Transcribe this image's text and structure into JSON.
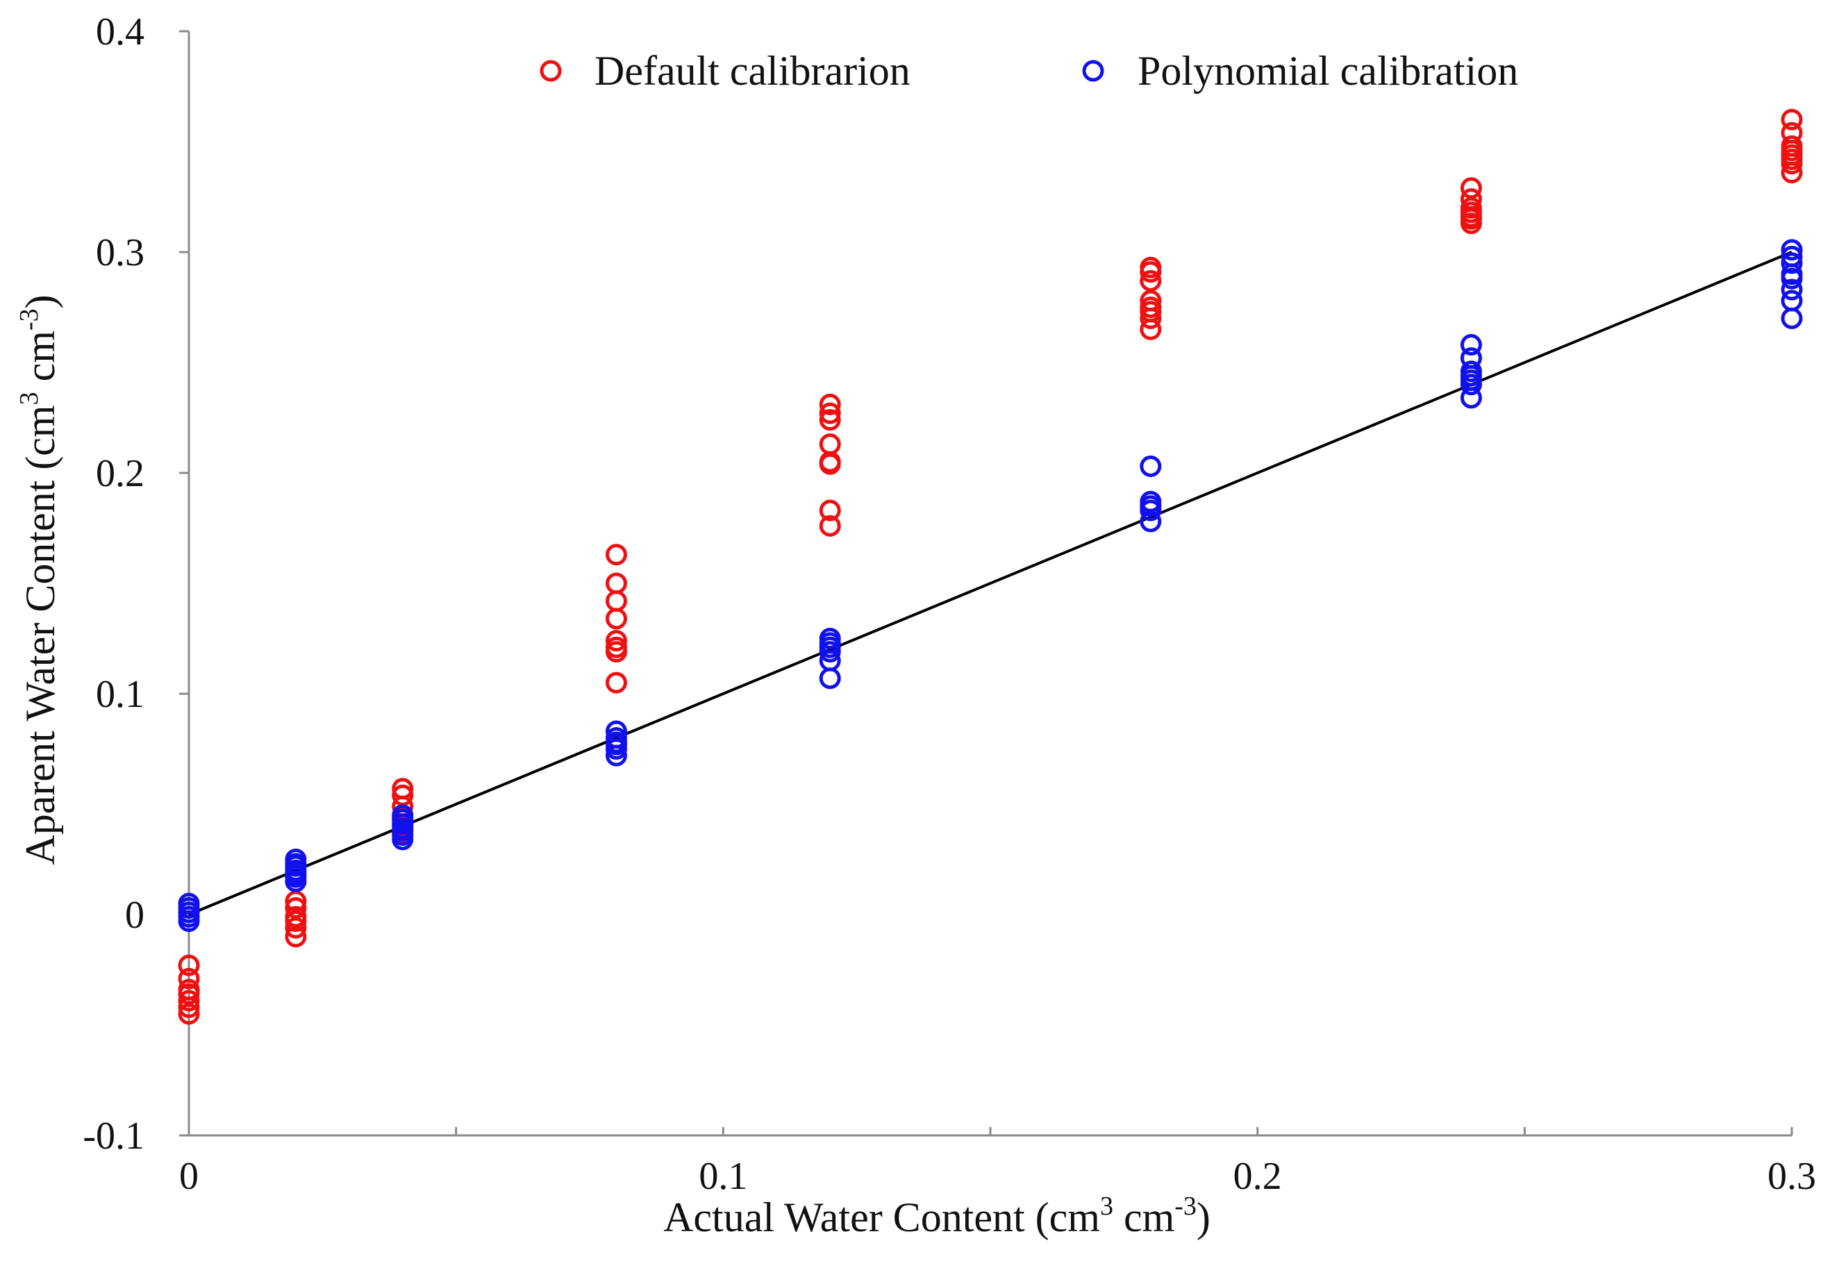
{
  "chart_data": {
    "type": "scatter",
    "title": "",
    "xlabel": "Actual Water Content (cm3 cm-3)",
    "ylabel": "Aparent Water Content (cm3 cm-3)",
    "xlabel_parts": {
      "text": "Actual Water Content (cm",
      "sup1": "3",
      "mid": " cm",
      "sup2": "-3",
      "end": ")"
    },
    "ylabel_parts": {
      "text": "Aparent Water Content (cm",
      "sup1": "3",
      "mid": " cm",
      "sup2": "-3",
      "end": ")"
    },
    "xlim": [
      0,
      0.3
    ],
    "ylim": [
      -0.1,
      0.4
    ],
    "x_ticks": [
      0,
      0.05,
      0.1,
      0.15,
      0.2,
      0.25,
      0.3
    ],
    "x_tick_labels": [
      {
        "value": 0,
        "label": "0"
      },
      {
        "value": 0.1,
        "label": "0.1"
      },
      {
        "value": 0.2,
        "label": "0.2"
      },
      {
        "value": 0.3,
        "label": "0.3"
      }
    ],
    "y_tick_labels": [
      {
        "value": -0.1,
        "label": "-0.1"
      },
      {
        "value": 0,
        "label": "0"
      },
      {
        "value": 0.1,
        "label": "0.1"
      },
      {
        "value": 0.2,
        "label": "0.2"
      },
      {
        "value": 0.3,
        "label": "0.3"
      },
      {
        "value": 0.4,
        "label": "0.4"
      }
    ],
    "grid": false,
    "legend_position": "top",
    "reference_line": {
      "name": "1:1 line",
      "x": [
        0,
        0.3
      ],
      "y": [
        0,
        0.3
      ],
      "color": "#000000"
    },
    "series": [
      {
        "name": "Default calibrarion",
        "color": "#ee1111",
        "marker": "open-circle",
        "x": [
          0,
          0,
          0,
          0,
          0,
          0,
          0,
          0.02,
          0.02,
          0.02,
          0.02,
          0.02,
          0.02,
          0.02,
          0.04,
          0.04,
          0.04,
          0.04,
          0.04,
          0.04,
          0.08,
          0.08,
          0.08,
          0.08,
          0.08,
          0.08,
          0.08,
          0.08,
          0.12,
          0.12,
          0.12,
          0.12,
          0.12,
          0.12,
          0.12,
          0.12,
          0.18,
          0.18,
          0.18,
          0.18,
          0.18,
          0.18,
          0.18,
          0.18,
          0.24,
          0.24,
          0.24,
          0.24,
          0.24,
          0.24,
          0.24,
          0.3,
          0.3,
          0.3,
          0.3,
          0.3,
          0.3,
          0.3,
          0.3
        ],
        "y": [
          -0.023,
          -0.029,
          -0.034,
          -0.036,
          -0.039,
          -0.042,
          -0.045,
          0.015,
          0.006,
          0.003,
          -0.001,
          -0.003,
          -0.006,
          -0.01,
          0.057,
          0.054,
          0.049,
          0.044,
          0.04,
          0.037,
          0.163,
          0.15,
          0.142,
          0.134,
          0.124,
          0.121,
          0.119,
          0.105,
          0.231,
          0.227,
          0.224,
          0.213,
          0.205,
          0.204,
          0.183,
          0.176,
          0.293,
          0.291,
          0.287,
          0.278,
          0.275,
          0.273,
          0.27,
          0.265,
          0.329,
          0.324,
          0.32,
          0.318,
          0.316,
          0.315,
          0.313,
          0.36,
          0.354,
          0.348,
          0.346,
          0.344,
          0.342,
          0.34,
          0.336
        ]
      },
      {
        "name": "Polynomial calibration",
        "color": "#1111ee",
        "marker": "open-circle",
        "x": [
          0,
          0,
          0,
          0,
          0,
          0.02,
          0.02,
          0.02,
          0.02,
          0.02,
          0.02,
          0.02,
          0.02,
          0.04,
          0.04,
          0.04,
          0.04,
          0.04,
          0.04,
          0.04,
          0.08,
          0.08,
          0.08,
          0.08,
          0.08,
          0.08,
          0.12,
          0.12,
          0.12,
          0.12,
          0.12,
          0.12,
          0.18,
          0.18,
          0.18,
          0.18,
          0.18,
          0.24,
          0.24,
          0.24,
          0.24,
          0.24,
          0.24,
          0.24,
          0.3,
          0.3,
          0.3,
          0.3,
          0.3,
          0.3,
          0.3,
          0.3
        ],
        "y": [
          0.005,
          0.003,
          0.001,
          -0.001,
          -0.003,
          0.025,
          0.023,
          0.022,
          0.02,
          0.019,
          0.018,
          0.017,
          0.015,
          0.045,
          0.043,
          0.041,
          0.039,
          0.038,
          0.036,
          0.034,
          0.083,
          0.08,
          0.078,
          0.077,
          0.075,
          0.072,
          0.125,
          0.123,
          0.121,
          0.119,
          0.115,
          0.107,
          0.203,
          0.187,
          0.185,
          0.183,
          0.178,
          0.258,
          0.252,
          0.246,
          0.244,
          0.242,
          0.24,
          0.234,
          0.301,
          0.298,
          0.295,
          0.29,
          0.288,
          0.283,
          0.278,
          0.27
        ]
      }
    ]
  }
}
